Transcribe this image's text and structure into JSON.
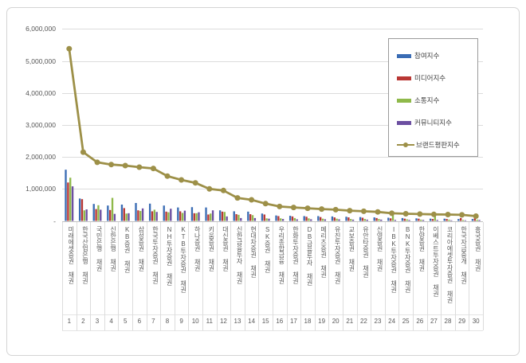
{
  "chart_data": {
    "type": "combo-bar-line",
    "title": "",
    "xlabel": "",
    "ylabel": "",
    "ylim": [
      0,
      6000000
    ],
    "ytick_step": 1000000,
    "ytick_labels": [
      "-",
      "1,000,000",
      "2,000,000",
      "3,000,000",
      "4,000,000",
      "5,000,000",
      "6,000,000"
    ],
    "grid": true,
    "legend_position": "upper right",
    "categories": [
      "미래에셋증권 채권",
      "한국산업은행 채권",
      "국민은행 채권",
      "신한은행 채권",
      "KB증권 채권",
      "삼성증권 채권",
      "한국투자증권 채권",
      "NH투자증권 채권",
      "KTB투자증권 채권",
      "하나증권 채권",
      "키움증권 채권",
      "대신증권 채권",
      "신한금융투자 채권",
      "현대차증권 채권",
      "SK증권 채권",
      "우리종합금융 채권",
      "한화투자증권 채권",
      "DB금융투자 채권",
      "메리츠증권 채권",
      "유진투자증권 채권",
      "교보증권 채권",
      "유안타증권 채권",
      "신영증권 채권",
      "IBK투자증권 채권",
      "BNK투자증권 채권",
      "한양증권 채권",
      "이베스트투자증권 채권",
      "코리아에셋투자증권 채권",
      "한국자금중개 채권",
      "흥국증권 채권"
    ],
    "category_numbers": [
      "1",
      "2",
      "3",
      "4",
      "5",
      "6",
      "7",
      "8",
      "9",
      "10",
      "11",
      "12",
      "13",
      "14",
      "15",
      "16",
      "17",
      "18",
      "19",
      "20",
      "21",
      "22",
      "23",
      "24",
      "25",
      "26",
      "27",
      "28",
      "29",
      "30"
    ],
    "series": [
      {
        "name": "참여지수",
        "type": "bar",
        "color": "#3a6cb4",
        "values": [
          1600000,
          700000,
          530000,
          480000,
          510000,
          560000,
          540000,
          480000,
          420000,
          430000,
          420000,
          330000,
          300000,
          290000,
          230000,
          170000,
          160000,
          150000,
          150000,
          140000,
          130000,
          120000,
          110000,
          100000,
          90000,
          80000,
          70000,
          70000,
          60000,
          60000
        ]
      },
      {
        "name": "미디어지수",
        "type": "bar",
        "color": "#b93734",
        "values": [
          1200000,
          680000,
          370000,
          340000,
          400000,
          330000,
          300000,
          290000,
          300000,
          240000,
          200000,
          290000,
          210000,
          210000,
          200000,
          150000,
          140000,
          130000,
          120000,
          110000,
          110000,
          100000,
          90000,
          80000,
          70000,
          70000,
          60000,
          60000,
          90000,
          80000
        ]
      },
      {
        "name": "소통지수",
        "type": "bar",
        "color": "#8fb94a",
        "values": [
          1350000,
          330000,
          490000,
          720000,
          230000,
          310000,
          350000,
          270000,
          250000,
          240000,
          230000,
          280000,
          190000,
          180000,
          80000,
          80000,
          90000,
          80000,
          70000,
          70000,
          60000,
          60000,
          60000,
          280000,
          50000,
          40000,
          250000,
          40000,
          30000,
          40000
        ]
      },
      {
        "name": "커뮤니티지수",
        "type": "bar",
        "color": "#6c4fa1",
        "values": [
          1080000,
          360000,
          350000,
          220000,
          240000,
          390000,
          280000,
          380000,
          320000,
          270000,
          330000,
          140000,
          90000,
          90000,
          70000,
          60000,
          50000,
          50000,
          50000,
          50000,
          40000,
          40000,
          40000,
          30000,
          30000,
          30000,
          30000,
          20000,
          20000,
          30000
        ]
      },
      {
        "name": "브랜드평판지수",
        "type": "line",
        "color": "#9d9048",
        "values": [
          5380000,
          2150000,
          1830000,
          1760000,
          1730000,
          1680000,
          1640000,
          1400000,
          1280000,
          1190000,
          1000000,
          950000,
          720000,
          660000,
          540000,
          450000,
          420000,
          395000,
          370000,
          350000,
          320000,
          300000,
          280000,
          240000,
          225000,
          215000,
          205000,
          200000,
          190000,
          150000
        ]
      }
    ]
  }
}
